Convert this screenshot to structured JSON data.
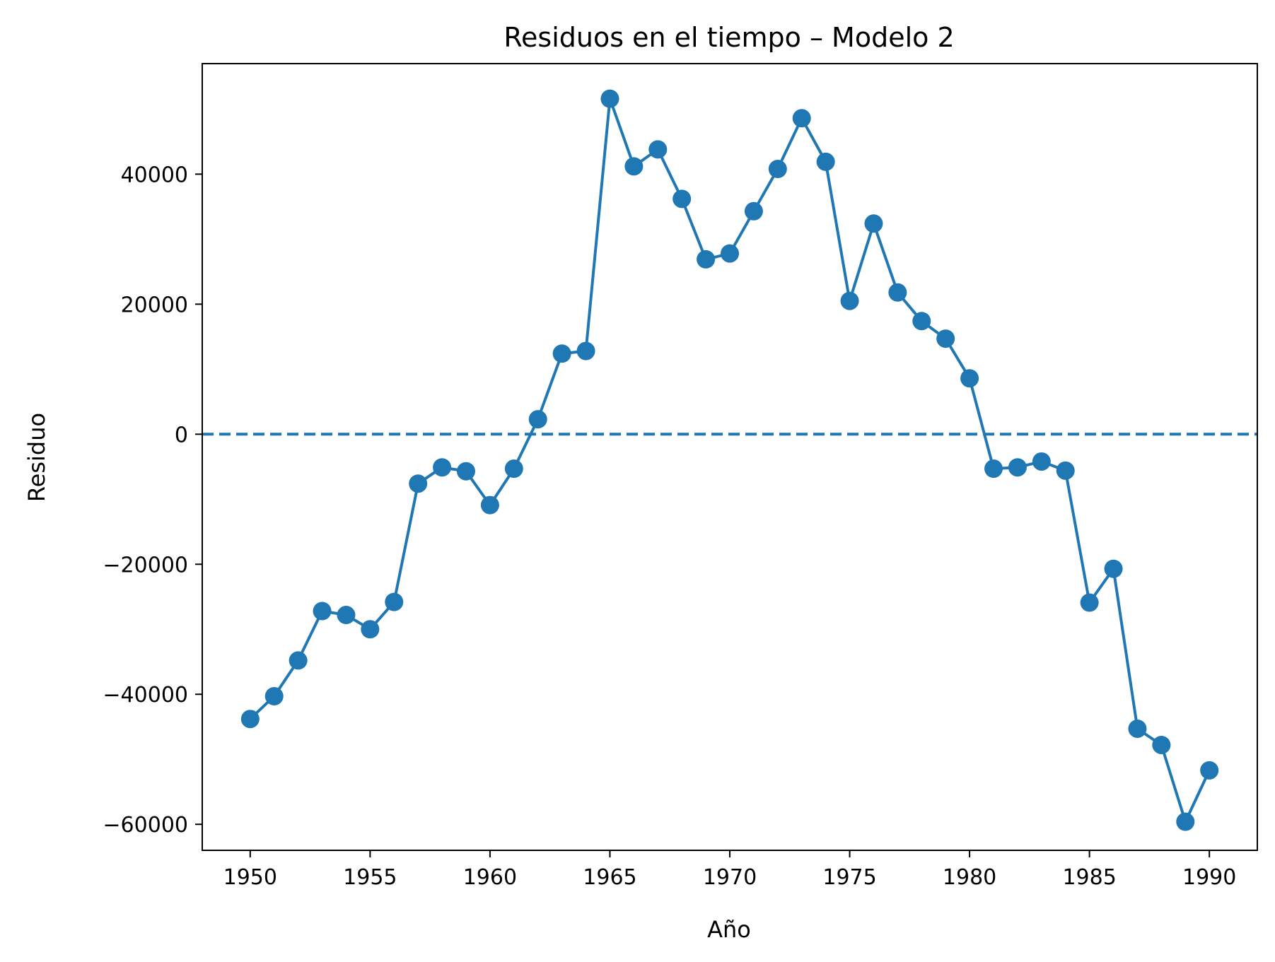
{
  "chart_data": {
    "type": "line",
    "title": "Residuos en el tiempo – Modelo 2",
    "xlabel": "Año",
    "ylabel": "Residuo",
    "xlim": [
      1948,
      1992
    ],
    "ylim": [
      -64000,
      57000
    ],
    "x_ticks": [
      1950,
      1955,
      1960,
      1965,
      1970,
      1975,
      1980,
      1985,
      1990
    ],
    "y_ticks": [
      -60000,
      -40000,
      -20000,
      0,
      20000,
      40000
    ],
    "y_tick_labels": [
      "−60000",
      "−40000",
      "−20000",
      "0",
      "20000",
      "40000"
    ],
    "grid": false,
    "reference_line": {
      "y": 0,
      "style": "dashed"
    },
    "series": [
      {
        "color": "#1f77b4",
        "marker": "circle",
        "x": [
          1950,
          1951,
          1952,
          1953,
          1954,
          1955,
          1956,
          1957,
          1958,
          1959,
          1960,
          1961,
          1962,
          1963,
          1964,
          1965,
          1966,
          1967,
          1968,
          1969,
          1970,
          1971,
          1972,
          1973,
          1974,
          1975,
          1976,
          1977,
          1978,
          1979,
          1980,
          1981,
          1982,
          1983,
          1984,
          1985,
          1986,
          1987,
          1988,
          1989,
          1990
        ],
        "y": [
          -43800,
          -40300,
          -34800,
          -27200,
          -27800,
          -30000,
          -25800,
          -7600,
          -5100,
          -5700,
          -10900,
          -5300,
          2300,
          12400,
          12800,
          51600,
          41200,
          43800,
          36200,
          26900,
          27800,
          34300,
          40800,
          48600,
          41900,
          20500,
          32400,
          21800,
          17400,
          14700,
          8600,
          -5300,
          -5100,
          -4200,
          -5600,
          -25900,
          -20700,
          -45300,
          -47800,
          -59600,
          -51700
        ]
      }
    ]
  }
}
